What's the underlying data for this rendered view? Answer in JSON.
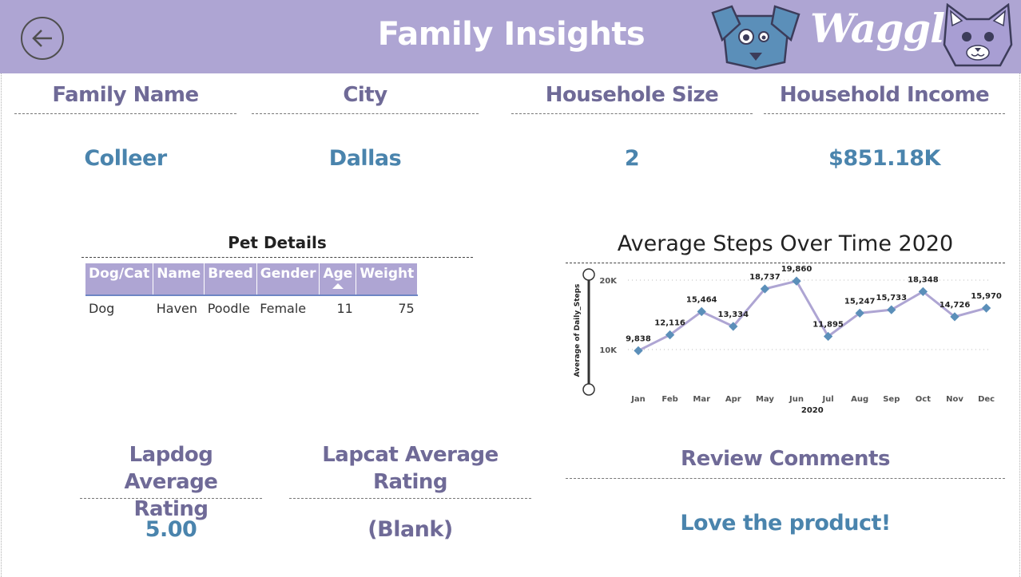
{
  "header": {
    "title": "Family Insights",
    "brand": "Waggle",
    "accent_color": "#aea5d3",
    "back_icon": "back-arrow-icon"
  },
  "kpis": {
    "family_name": {
      "label": "Family Name",
      "value": "Colleer"
    },
    "city": {
      "label": "City",
      "value": "Dallas"
    },
    "household_size": {
      "label": "Householе Size",
      "value": "2"
    },
    "household_income": {
      "label": "Household Income",
      "value": "$851.18K"
    }
  },
  "pet_details": {
    "title": "Pet Details",
    "columns": [
      "Dog/Cat",
      "Name",
      "Breed",
      "Gender",
      "Age",
      "Weight"
    ],
    "sorted_column": "Age",
    "rows": [
      [
        "Dog",
        "Haven",
        "Poodle",
        "Female",
        "11",
        "75"
      ]
    ]
  },
  "ratings": {
    "lapdog": {
      "label_line1": "Lapdog Average",
      "label_line2": "Rating",
      "value": "5.00"
    },
    "lapcat": {
      "label_line1": "Lapcat Average",
      "label_line2": "Rating",
      "value": "(Blank)"
    }
  },
  "review": {
    "label": "Review Comments",
    "value": "Love the product!"
  },
  "chart_data": {
    "type": "line",
    "title": "Average Steps Over Time 2020",
    "xlabel": "2020",
    "ylabel": "Average of Daily_Steps",
    "categories": [
      "Jan",
      "Feb",
      "Mar",
      "Apr",
      "May",
      "Jun",
      "Jul",
      "Aug",
      "Sep",
      "Oct",
      "Nov",
      "Dec"
    ],
    "values": [
      9838,
      12116,
      15464,
      13334,
      18737,
      19860,
      11895,
      15247,
      15733,
      18348,
      14726,
      15970
    ],
    "data_labels": [
      "9,838",
      "12,116",
      "15,464",
      "13,334",
      "18,737",
      "19,860",
      "11,895",
      "15,247",
      "15,733",
      "18,348",
      "14,726",
      "15,970"
    ],
    "yticks": [
      10000,
      20000
    ],
    "ytick_labels": [
      "10K",
      "20K"
    ],
    "ylim": [
      5000,
      21000
    ],
    "grid": true,
    "line_color": "#aea5d3",
    "marker_color": "#5b8fb9"
  }
}
